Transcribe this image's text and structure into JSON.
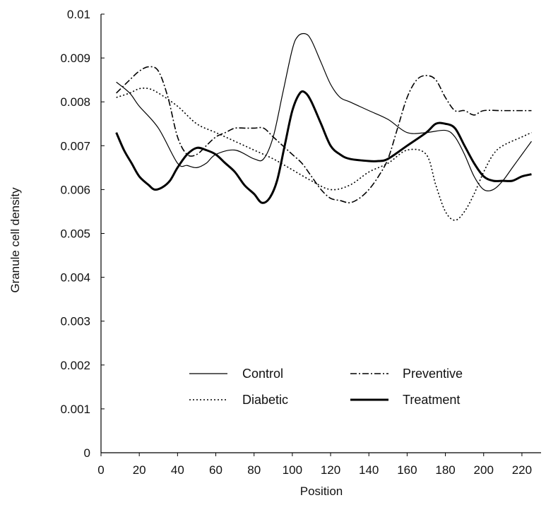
{
  "chart_data": {
    "type": "line",
    "title": "",
    "xlabel": "Position",
    "ylabel": "Granule cell density",
    "xlim": [
      0,
      230
    ],
    "ylim": [
      0,
      0.01
    ],
    "xticks": [
      0,
      20,
      40,
      60,
      80,
      100,
      120,
      140,
      160,
      180,
      200,
      220
    ],
    "yticks": [
      0,
      0.001,
      0.002,
      0.003,
      0.004,
      0.005,
      0.006,
      0.007,
      0.008,
      0.009,
      0.01
    ],
    "xtick_labels": [
      "0",
      "20",
      "40",
      "60",
      "80",
      "100",
      "120",
      "140",
      "160",
      "180",
      "200",
      "220"
    ],
    "ytick_labels": [
      "0",
      "0.001",
      "0.002",
      "0.003",
      "0.004",
      "0.005",
      "0.006",
      "0.007",
      "0.008",
      "0.009",
      "0.01"
    ],
    "grid": false,
    "legend_position": "lower-center",
    "series": [
      {
        "name": "Control",
        "style": "solid-thin",
        "color": "#000000",
        "x": [
          8,
          15,
          20,
          30,
          40,
          45,
          50,
          55,
          60,
          70,
          80,
          85,
          90,
          95,
          100,
          103,
          107,
          110,
          115,
          120,
          125,
          130,
          140,
          150,
          160,
          170,
          180,
          185,
          190,
          195,
          200,
          205,
          210,
          215,
          220,
          225
        ],
        "y": [
          0.00845,
          0.0082,
          0.0079,
          0.0074,
          0.0066,
          0.00655,
          0.0065,
          0.0066,
          0.0068,
          0.0069,
          0.0067,
          0.0067,
          0.0072,
          0.0082,
          0.0092,
          0.0095,
          0.00955,
          0.0094,
          0.0089,
          0.0084,
          0.0081,
          0.008,
          0.0078,
          0.0076,
          0.0073,
          0.0073,
          0.00735,
          0.0072,
          0.0068,
          0.0063,
          0.006,
          0.006,
          0.0062,
          0.0065,
          0.0068,
          0.0071
        ]
      },
      {
        "name": "Diabetic",
        "style": "dotted",
        "color": "#000000",
        "x": [
          8,
          15,
          20,
          25,
          30,
          40,
          50,
          60,
          70,
          80,
          90,
          100,
          110,
          120,
          130,
          140,
          150,
          160,
          170,
          175,
          180,
          185,
          190,
          195,
          200,
          205,
          210,
          220,
          225
        ],
        "y": [
          0.0081,
          0.0082,
          0.0083,
          0.0083,
          0.0082,
          0.0079,
          0.0075,
          0.0073,
          0.0071,
          0.0069,
          0.0067,
          0.00645,
          0.0062,
          0.006,
          0.0061,
          0.0064,
          0.0066,
          0.0069,
          0.0068,
          0.0061,
          0.0055,
          0.0053,
          0.0055,
          0.0059,
          0.0064,
          0.0068,
          0.007,
          0.0072,
          0.0073
        ]
      },
      {
        "name": "Preventive",
        "style": "dash-dot",
        "color": "#000000",
        "x": [
          8,
          15,
          20,
          25,
          30,
          35,
          40,
          45,
          50,
          55,
          60,
          65,
          70,
          75,
          80,
          85,
          90,
          95,
          100,
          105,
          110,
          115,
          120,
          125,
          130,
          135,
          140,
          145,
          150,
          155,
          160,
          165,
          170,
          175,
          180,
          185,
          190,
          195,
          200,
          210,
          220,
          225
        ],
        "y": [
          0.0082,
          0.0085,
          0.0087,
          0.0088,
          0.0087,
          0.0081,
          0.0072,
          0.0068,
          0.0068,
          0.007,
          0.0072,
          0.0073,
          0.0074,
          0.0074,
          0.0074,
          0.0074,
          0.0072,
          0.007,
          0.0068,
          0.0066,
          0.0063,
          0.006,
          0.0058,
          0.00575,
          0.0057,
          0.0058,
          0.006,
          0.0063,
          0.0067,
          0.0074,
          0.0081,
          0.0085,
          0.0086,
          0.0085,
          0.0081,
          0.0078,
          0.0078,
          0.0077,
          0.0078,
          0.0078,
          0.0078,
          0.0078
        ]
      },
      {
        "name": "Treatment",
        "style": "solid-thick",
        "color": "#000000",
        "x": [
          8,
          12,
          16,
          20,
          25,
          28,
          32,
          36,
          40,
          45,
          50,
          55,
          60,
          65,
          70,
          75,
          80,
          84,
          88,
          92,
          96,
          100,
          104,
          107,
          110,
          115,
          120,
          125,
          130,
          140,
          145,
          150,
          160,
          170,
          175,
          180,
          185,
          190,
          195,
          200,
          205,
          210,
          215,
          220,
          225
        ],
        "y": [
          0.0073,
          0.0069,
          0.0066,
          0.0063,
          0.0061,
          0.006,
          0.00605,
          0.0062,
          0.0065,
          0.0068,
          0.00695,
          0.0069,
          0.0068,
          0.0066,
          0.0064,
          0.0061,
          0.0059,
          0.0057,
          0.0058,
          0.0062,
          0.007,
          0.0078,
          0.0082,
          0.0082,
          0.008,
          0.0075,
          0.007,
          0.0068,
          0.0067,
          0.00665,
          0.00665,
          0.0067,
          0.007,
          0.0073,
          0.0075,
          0.0075,
          0.0074,
          0.007,
          0.0066,
          0.0063,
          0.0062,
          0.0062,
          0.0062,
          0.0063,
          0.00635
        ]
      }
    ]
  }
}
